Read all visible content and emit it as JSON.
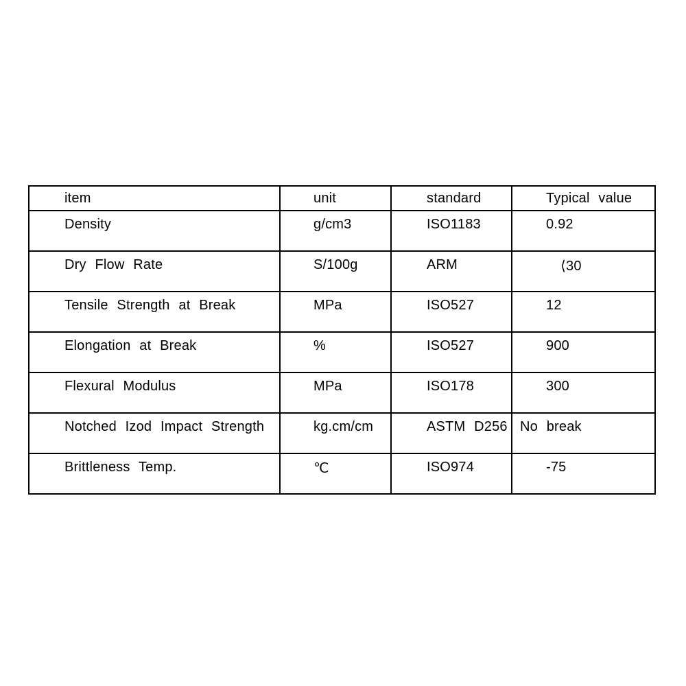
{
  "table": {
    "headers": [
      "item",
      "unit",
      "standard",
      "Typical value"
    ],
    "rows": [
      [
        "Density",
        "g/cm3",
        "ISO1183",
        "0.92"
      ],
      [
        "Dry Flow Rate",
        "S/100g",
        "ARM",
        "⟨30"
      ],
      [
        "Tensile Strength at Break",
        "MPa",
        "ISO527",
        "12"
      ],
      [
        "Elongation at Break",
        "%",
        "ISO527",
        "900"
      ],
      [
        "Flexural Modulus",
        "MPa",
        "ISO178",
        "300"
      ],
      [
        "Notched Izod Impact Strength",
        "kg.cm/cm",
        "ASTM D256",
        "No break"
      ],
      [
        "Brittleness Temp.",
        "℃",
        "ISO974",
        "-75"
      ]
    ],
    "colors": {
      "border": "#000000",
      "text": "#000000",
      "background": "#ffffff"
    }
  }
}
